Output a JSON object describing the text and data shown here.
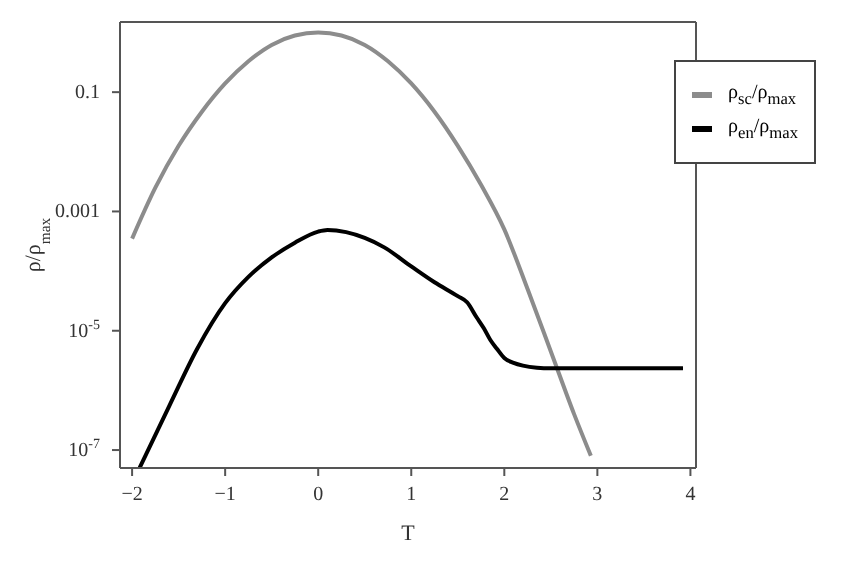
{
  "chart_data": {
    "type": "line",
    "xlabel": "T",
    "ylabel": "ρ/ρ$_{max}$",
    "log": "y",
    "xlim": [
      -2.13,
      4.06
    ],
    "xticks": [
      -2,
      -1,
      0,
      1,
      2,
      3,
      4
    ],
    "ylim": [
      5e-08,
      1.5
    ],
    "yticks": [
      {
        "value": 1e-07,
        "label": "10$^{-7}$"
      },
      {
        "value": 1e-05,
        "label": "10$^{-5}$"
      },
      0.001,
      0.1
    ],
    "legend": "top right",
    "marker": "none",
    "line_style": "solid",
    "series": [
      {
        "name": "ρ$_{sc}$/ρ$_{max}$",
        "color": "#8c8c8c",
        "x": [
          -2,
          -1.75,
          -1.5,
          -1.25,
          -1,
          -0.75,
          -0.5,
          -0.25,
          0,
          0.25,
          0.5,
          0.75,
          1,
          1.25,
          1.5,
          1.75,
          2,
          2.25,
          2.5,
          2.75,
          2.93
        ],
        "values": [
          0.00035,
          0.0025,
          0.0126,
          0.047,
          0.14,
          0.33,
          0.62,
          0.89,
          1,
          0.89,
          0.62,
          0.33,
          0.14,
          0.047,
          0.0126,
          0.0028,
          0.0005,
          5e-05,
          4.5e-06,
          4e-07,
          8e-08
        ]
      },
      {
        "name": "ρ$_{en}$/ρ$_{max}$",
        "color": "#000000",
        "x": [
          -1.92,
          -1.6,
          -1.3,
          -1,
          -0.75,
          -0.5,
          -0.25,
          0,
          0.1,
          0.3,
          0.5,
          0.71,
          1,
          1.25,
          1.5,
          1.6,
          1.7,
          1.78,
          1.85,
          1.92,
          2,
          2.1,
          2.2,
          2.35,
          2.5,
          3,
          3.5,
          3.92
        ],
        "values": [
          5e-08,
          5.5e-07,
          5e-06,
          2.9e-05,
          8e-05,
          0.00017,
          0.0003,
          0.00046,
          0.00049,
          0.00045,
          0.00036,
          0.00025,
          0.00012,
          6.5e-05,
          3.8e-05,
          3e-05,
          1.7e-05,
          1.1e-05,
          7e-06,
          5e-06,
          3.5e-06,
          2.9e-06,
          2.6e-06,
          2.4e-06,
          2.35e-06,
          2.35e-06,
          2.35e-06,
          2.35e-06
        ]
      }
    ]
  }
}
